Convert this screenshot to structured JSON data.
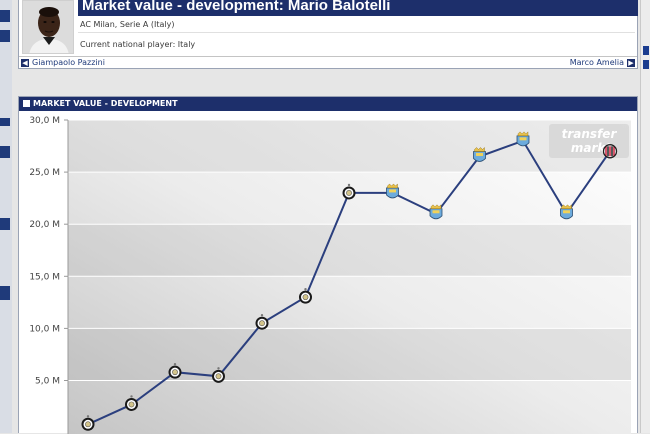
{
  "player": {
    "title": "Market value - development: Mario Balotelli",
    "club_league": "AC Milan, Serie A (Italy)",
    "national_player": "Current national player: Italy",
    "nav_prev": "Giampaolo Pazzini",
    "nav_next": "Marco Amelia"
  },
  "panel": {
    "title": "MARKET VALUE - DEVELOPMENT",
    "logo_line1": "transfer",
    "logo_line2": "markt"
  },
  "colors": {
    "navy": "#1d2f6b",
    "line": "#2b3f7e",
    "inter": "#1a1a1a",
    "mancity": "#6cabdd",
    "milan": "#c8102e"
  },
  "chart_data": {
    "type": "line",
    "title": "",
    "xlabel": "",
    "ylabel": "",
    "ylim": [
      0,
      30
    ],
    "yticks": [
      5,
      10,
      15,
      20,
      25,
      30
    ],
    "ytick_labels": [
      "5,0 M",
      "10,0 M",
      "15,0 M",
      "20,0 M",
      "25,0 M",
      "30,0 M"
    ],
    "grid": true,
    "series": [
      {
        "points": [
          {
            "value": 0.8,
            "club": "inter"
          },
          {
            "value": 2.7,
            "club": "inter"
          },
          {
            "value": 5.8,
            "club": "inter"
          },
          {
            "value": 5.4,
            "club": "inter"
          },
          {
            "value": 10.5,
            "club": "inter"
          },
          {
            "value": 13.0,
            "club": "inter"
          },
          {
            "value": 23.0,
            "club": "inter"
          },
          {
            "value": 23.0,
            "club": "mancity"
          },
          {
            "value": 21.0,
            "club": "mancity"
          },
          {
            "value": 26.5,
            "club": "mancity"
          },
          {
            "value": 28.0,
            "club": "mancity"
          },
          {
            "value": 21.0,
            "club": "mancity"
          },
          {
            "value": 27.0,
            "club": "milan"
          }
        ]
      }
    ]
  }
}
